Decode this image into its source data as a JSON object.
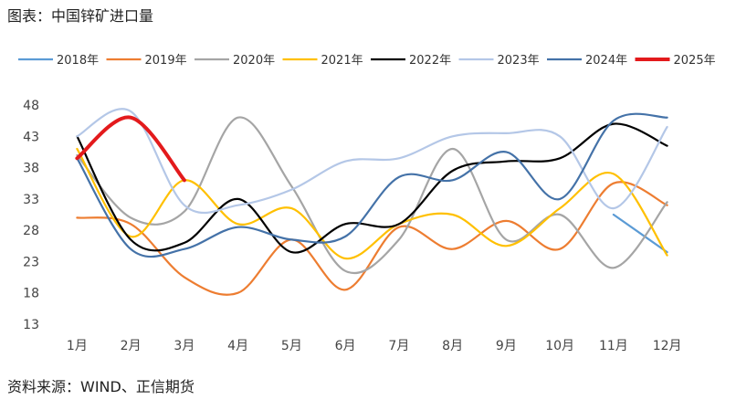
{
  "header": {
    "title": "图表：中国锌矿进口量"
  },
  "footer": {
    "source": "资料来源：WIND、正信期货"
  },
  "chart_data": {
    "type": "line",
    "title": "图表：中国锌矿进口量",
    "xlabel": "",
    "ylabel": "",
    "categories": [
      "1月",
      "2月",
      "3月",
      "4月",
      "5月",
      "6月",
      "7月",
      "8月",
      "9月",
      "10月",
      "11月",
      "12月"
    ],
    "yticks": [
      13,
      18,
      23,
      28,
      33,
      38,
      43,
      48
    ],
    "ylim": [
      13,
      48
    ],
    "grid": false,
    "legend_position": "top",
    "series": [
      {
        "name": "2018年",
        "color": "#5b9bd5",
        "width": 2.2,
        "values": [
          null,
          null,
          null,
          null,
          null,
          null,
          null,
          null,
          null,
          null,
          30.5,
          24.5
        ]
      },
      {
        "name": "2019年",
        "color": "#ed7d31",
        "width": 2.2,
        "values": [
          30,
          29,
          20.5,
          18,
          26.5,
          18.5,
          28.5,
          25,
          29.5,
          25,
          35.5,
          32
        ]
      },
      {
        "name": "2020年",
        "color": "#a5a5a5",
        "width": 2.2,
        "values": [
          40,
          30,
          31,
          46,
          35,
          21.5,
          26.5,
          41,
          26.5,
          30.5,
          22,
          32.5
        ]
      },
      {
        "name": "2021年",
        "color": "#ffc000",
        "width": 2.2,
        "values": [
          41,
          27,
          36,
          29,
          31.5,
          23.5,
          29,
          30.5,
          25.5,
          31.5,
          37,
          24
        ]
      },
      {
        "name": "2022年",
        "color": "#000000",
        "width": 2.2,
        "values": [
          43,
          26.5,
          26,
          33,
          24.5,
          29,
          29,
          37.5,
          39,
          39.5,
          45,
          41.5
        ]
      },
      {
        "name": "2023年",
        "color": "#b4c7e7",
        "width": 2.2,
        "values": [
          43,
          47,
          32,
          32,
          34.5,
          39,
          39.5,
          43,
          43.5,
          43,
          31.5,
          44.5
        ]
      },
      {
        "name": "2024年",
        "color": "#4472a8",
        "width": 2.2,
        "values": [
          39.5,
          25,
          25,
          28.5,
          26.5,
          27,
          36.5,
          36,
          40.5,
          33,
          45.5,
          46
        ]
      },
      {
        "name": "2025年",
        "color": "#e31a1c",
        "width": 4,
        "values": [
          39.5,
          46,
          36,
          null,
          null,
          null,
          null,
          null,
          null,
          null,
          null,
          null
        ]
      }
    ]
  }
}
